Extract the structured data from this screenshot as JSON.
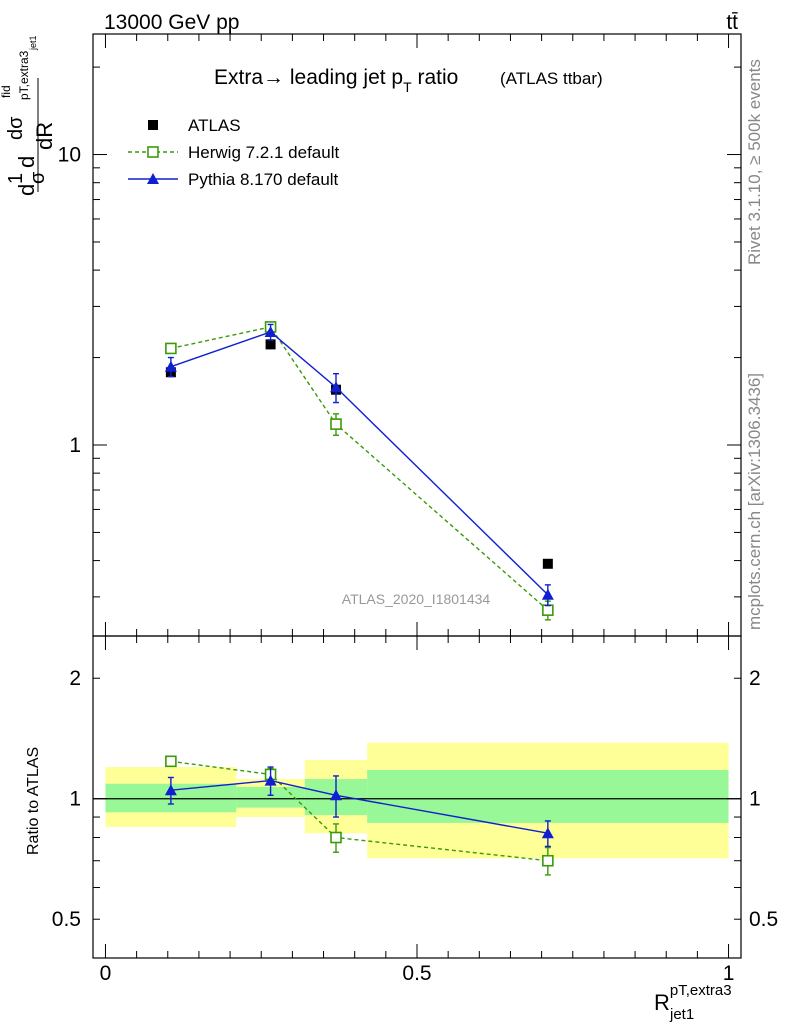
{
  "header": {
    "energy_label": "13000 GeV pp",
    "process_label": "tt̄"
  },
  "side_labels": {
    "rivet": "Rivet 3.1.10, ≥ 500k events",
    "mcplots": "mcplots.cern.ch [arXiv:1306.3436]"
  },
  "colors": {
    "atlas": "#000000",
    "herwig": "#3a9a0a",
    "pythia": "#1020d0",
    "band_inner": "#98f898",
    "band_outer": "#ffff98"
  },
  "chart_data": [
    {
      "type": "scatter",
      "title": "Extra → leading jet p_T ratio",
      "title_main": "Extra→ leading jet p",
      "title_sub": "T",
      "title_tail": " ratio",
      "title_extra": "(ATLAS ttbar)",
      "analysis_label": "ATLAS_2020_I1801434",
      "ylabel": "1/σ dσ^fid/dR_{jet1}^{pT,extra3}",
      "ylabel_parts": {
        "d1": "d",
        "one": "1",
        "sigma": "σ",
        "d2": "d",
        "dsig": "dσ",
        "fid": "fid",
        "sub": "pT,extra3",
        "sub2": "jet1",
        "dR": "dR"
      },
      "yscale": "log",
      "ylim": [
        0.22,
        26
      ],
      "yticks_labeled": [
        {
          "v": 1,
          "t": "1"
        },
        {
          "v": 10,
          "t": "10"
        }
      ],
      "legend": {
        "placement": "top-left",
        "entries": [
          {
            "key": "atlas",
            "label": "ATLAS"
          },
          {
            "key": "herwig",
            "label": "Herwig 7.2.1 default"
          },
          {
            "key": "pythia",
            "label": "Pythia 8.170 default"
          }
        ]
      },
      "series": [
        {
          "name": "ATLAS",
          "key": "atlas",
          "x": [
            0.105,
            0.265,
            0.37,
            0.71
          ],
          "y": [
            1.78,
            2.22,
            1.55,
            0.39
          ]
        },
        {
          "name": "Herwig 7.2.1 default",
          "key": "herwig",
          "x": [
            0.105,
            0.265,
            0.37,
            0.71
          ],
          "y": [
            2.15,
            2.55,
            1.18,
            0.27
          ],
          "err": [
            0.06,
            0.08,
            0.1,
            0.02
          ]
        },
        {
          "name": "Pythia 8.170 default",
          "key": "pythia",
          "x": [
            0.105,
            0.265,
            0.37,
            0.71
          ],
          "y": [
            1.86,
            2.45,
            1.58,
            0.305
          ],
          "err": [
            0.14,
            0.15,
            0.18,
            0.025
          ]
        }
      ]
    },
    {
      "type": "scatter",
      "ylabel": "Ratio to ATLAS",
      "xlabel": "R",
      "xlabel_sup": "pT,extra3",
      "xlabel_sub": "jet1",
      "xlim": [
        -0.02,
        1.02
      ],
      "xticks": [
        {
          "v": 0,
          "t": "0"
        },
        {
          "v": 0.5,
          "t": "0.5"
        },
        {
          "v": 1,
          "t": "1"
        }
      ],
      "yscale": "log",
      "ylim": [
        0.4,
        2.55
      ],
      "yticks_labeled": [
        {
          "v": 0.5,
          "t": "0.5"
        },
        {
          "v": 1,
          "t": "1"
        },
        {
          "v": 2,
          "t": "2"
        }
      ],
      "bands": [
        {
          "x0": 0.0,
          "x1": 0.21,
          "inner": [
            0.925,
            1.09
          ],
          "outer": [
            0.85,
            1.2
          ]
        },
        {
          "x0": 0.21,
          "x1": 0.32,
          "inner": [
            0.95,
            1.07
          ],
          "outer": [
            0.9,
            1.12
          ]
        },
        {
          "x0": 0.32,
          "x1": 0.42,
          "inner": [
            0.91,
            1.12
          ],
          "outer": [
            0.82,
            1.25
          ]
        },
        {
          "x0": 0.42,
          "x1": 1.0,
          "inner": [
            0.87,
            1.18
          ],
          "outer": [
            0.71,
            1.38
          ]
        }
      ],
      "series": [
        {
          "name": "Herwig 7.2.1 default",
          "key": "herwig",
          "x": [
            0.105,
            0.265,
            0.37,
            0.71
          ],
          "y": [
            1.24,
            1.15,
            0.8,
            0.7
          ],
          "err": [
            0.035,
            0.04,
            0.065,
            0.055
          ]
        },
        {
          "name": "Pythia 8.170 default",
          "key": "pythia",
          "x": [
            0.105,
            0.265,
            0.37,
            0.71
          ],
          "y": [
            1.05,
            1.11,
            1.02,
            0.82
          ],
          "err": [
            0.08,
            0.09,
            0.12,
            0.06
          ]
        }
      ]
    }
  ]
}
